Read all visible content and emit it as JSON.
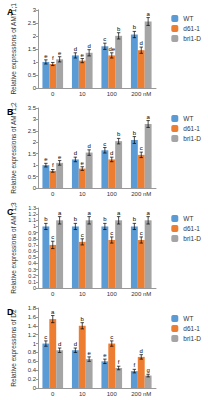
{
  "chart_data": [
    {
      "type": "bar",
      "panel": "A",
      "y_label": "Relative expressions of AMT1;1",
      "categories": [
        "0",
        "10",
        "100",
        "200 nM"
      ],
      "legend": "right",
      "ylim": [
        0,
        3
      ],
      "yticks": [
        0,
        0.5,
        1,
        1.5,
        2,
        2.5,
        3
      ],
      "series": [
        {
          "name": "WT",
          "color": "#5b9bd5",
          "values": [
            1.0,
            1.25,
            1.6,
            2.05
          ],
          "errors": [
            0.08,
            0.1,
            0.12,
            0.12
          ],
          "letters": [
            "e",
            "d",
            "c",
            "b"
          ]
        },
        {
          "name": "d61-1",
          "color": "#ed7d31",
          "values": [
            0.92,
            1.05,
            1.25,
            1.45
          ],
          "errors": [
            0.06,
            0.08,
            0.1,
            0.12
          ],
          "letters": [
            "f",
            "e",
            "de",
            "d"
          ]
        },
        {
          "name": "bri1-D",
          "color": "#a5a5a5",
          "values": [
            1.1,
            1.35,
            2.0,
            2.55
          ],
          "errors": [
            0.1,
            0.12,
            0.12,
            0.15
          ],
          "letters": [
            "e",
            "d",
            "b",
            "a"
          ]
        }
      ]
    },
    {
      "type": "bar",
      "panel": "B",
      "y_label": "Relative expressions of AMT1;2",
      "categories": [
        "0",
        "10",
        "100",
        "200 nM"
      ],
      "legend": "right",
      "ylim": [
        0,
        3.5
      ],
      "yticks": [
        0,
        0.5,
        1,
        1.5,
        2,
        2.5,
        3,
        3.5
      ],
      "series": [
        {
          "name": "WT",
          "color": "#5b9bd5",
          "values": [
            1.0,
            1.25,
            1.65,
            2.1
          ],
          "errors": [
            0.08,
            0.1,
            0.12,
            0.15
          ],
          "letters": [
            "e",
            "d",
            "c",
            "b"
          ]
        },
        {
          "name": "d61-1",
          "color": "#ed7d31",
          "values": [
            0.75,
            0.85,
            1.25,
            1.45
          ],
          "errors": [
            0.06,
            0.08,
            0.1,
            0.12
          ],
          "letters": [
            "f",
            "e",
            "d",
            "c"
          ]
        },
        {
          "name": "bri1-D",
          "color": "#a5a5a5",
          "values": [
            1.1,
            1.55,
            2.05,
            2.8
          ],
          "errors": [
            0.1,
            0.12,
            0.12,
            0.15
          ],
          "letters": [
            "e",
            "d",
            "b",
            "a"
          ]
        }
      ]
    },
    {
      "type": "bar",
      "panel": "C",
      "y_label": "Relative expressions of AMT1;3",
      "categories": [
        "0",
        "10",
        "100",
        "200 nM"
      ],
      "legend": "right",
      "ylim": [
        0,
        1.3
      ],
      "yticks": [
        0,
        0.1,
        0.2,
        0.3,
        0.4,
        0.5,
        0.6,
        0.7,
        0.8,
        0.9,
        1,
        1.1,
        1.2,
        1.3
      ],
      "series": [
        {
          "name": "WT",
          "color": "#5b9bd5",
          "values": [
            1.0,
            1.0,
            1.0,
            1.0
          ],
          "errors": [
            0.05,
            0.05,
            0.05,
            0.05
          ],
          "letters": [
            "b",
            "b",
            "b",
            "b"
          ]
        },
        {
          "name": "d61-1",
          "color": "#ed7d31",
          "values": [
            0.7,
            0.75,
            0.78,
            0.78
          ],
          "errors": [
            0.06,
            0.05,
            0.05,
            0.05
          ],
          "letters": [
            "c",
            "c",
            "c",
            "c"
          ]
        },
        {
          "name": "bri1-D",
          "color": "#a5a5a5",
          "values": [
            1.1,
            1.1,
            1.1,
            1.1
          ],
          "errors": [
            0.06,
            0.06,
            0.06,
            0.06
          ],
          "letters": [
            "a",
            "a",
            "a",
            "a"
          ]
        }
      ]
    },
    {
      "type": "bar",
      "panel": "D",
      "y_label": "Relative expressions of D2",
      "categories": [
        "0",
        "10",
        "100",
        "200 nM"
      ],
      "legend": "right",
      "ylim": [
        0,
        1.8
      ],
      "yticks": [
        0,
        0.2,
        0.4,
        0.6,
        0.8,
        1,
        1.2,
        1.4,
        1.6,
        1.8
      ],
      "series": [
        {
          "name": "WT",
          "color": "#5b9bd5",
          "values": [
            1.0,
            0.85,
            0.6,
            0.38
          ],
          "errors": [
            0.06,
            0.05,
            0.05,
            0.04
          ],
          "letters": [
            "c",
            "d",
            "e",
            "f"
          ]
        },
        {
          "name": "d61-1",
          "color": "#ed7d31",
          "values": [
            1.55,
            1.4,
            1.0,
            0.7
          ],
          "errors": [
            0.08,
            0.07,
            0.06,
            0.05
          ],
          "letters": [
            "a",
            "b",
            "c",
            "d"
          ]
        },
        {
          "name": "bri1-D",
          "color": "#a5a5a5",
          "values": [
            0.85,
            0.65,
            0.45,
            0.28
          ],
          "errors": [
            0.05,
            0.05,
            0.04,
            0.03
          ],
          "letters": [
            "d",
            "e",
            "f",
            "g"
          ]
        }
      ]
    }
  ]
}
